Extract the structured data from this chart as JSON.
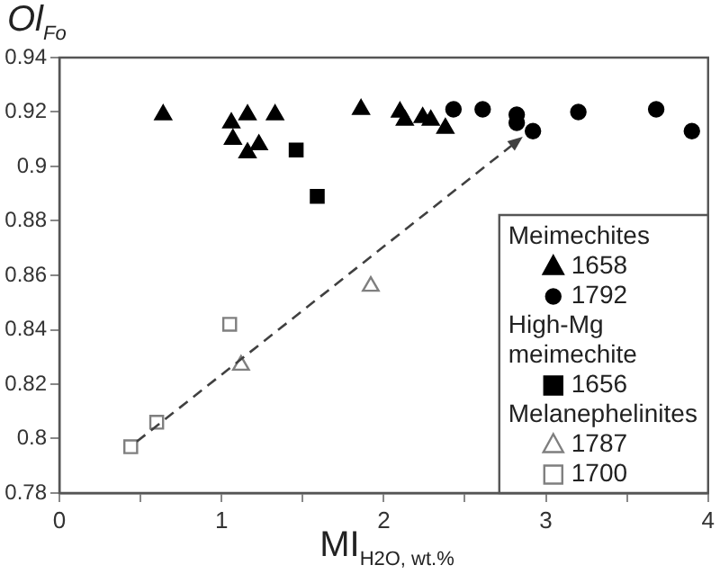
{
  "chart_data": {
    "type": "scatter",
    "xlabel": "MI$_{H2O, wt.%}$",
    "ylabel": "Ol$_{Fo}$",
    "xlim": [
      0,
      4
    ],
    "xticks": [
      0,
      {
        "value": 0.5,
        "label": null
      },
      1,
      {
        "value": 1.5,
        "label": null
      },
      2,
      {
        "value": 2.5,
        "label": null
      },
      3,
      {
        "value": 3.5,
        "label": null
      },
      4
    ],
    "ylim": [
      0.78,
      0.94
    ],
    "yticks": [
      0.78,
      0.8,
      0.82,
      0.84,
      0.86,
      0.88,
      0.9,
      0.92,
      0.94
    ],
    "grid": false,
    "legend": "bottom right",
    "annotations": [
      "Meimechites",
      "High-Mg meimechite",
      "Melanephelinites"
    ],
    "series": [
      {
        "name": "1658",
        "color": "#000000",
        "marker": "triangle",
        "x": [
          0.64,
          1.06,
          1.16,
          1.33,
          1.07,
          1.23,
          1.16,
          1.86,
          2.1,
          2.13,
          2.24,
          2.29,
          2.38
        ],
        "values": [
          0.919,
          0.916,
          0.919,
          0.919,
          0.91,
          0.908,
          0.905,
          0.921,
          0.92,
          0.917,
          0.918,
          0.917,
          0.914
        ]
      },
      {
        "name": "1792",
        "color": "#000000",
        "marker": "circle",
        "x": [
          2.43,
          2.61,
          2.82,
          2.82,
          2.92,
          3.2,
          3.68,
          3.9
        ],
        "values": [
          0.921,
          0.921,
          0.919,
          0.916,
          0.913,
          0.92,
          0.921,
          0.913
        ]
      },
      {
        "name": "1656",
        "color": "#000000",
        "marker": "square",
        "x": [
          1.46,
          1.59
        ],
        "values": [
          0.906,
          0.889
        ]
      },
      {
        "name": "1787",
        "color": "#7f7f7f",
        "marker": "triangle",
        "x": [
          1.12,
          1.92
        ],
        "values": [
          0.827,
          0.856
        ]
      },
      {
        "name": "1700",
        "color": "#7f7f7f",
        "marker": "square",
        "x": [
          0.44,
          0.6,
          1.05
        ],
        "values": [
          0.797,
          0.806,
          0.842
        ]
      }
    ]
  }
}
